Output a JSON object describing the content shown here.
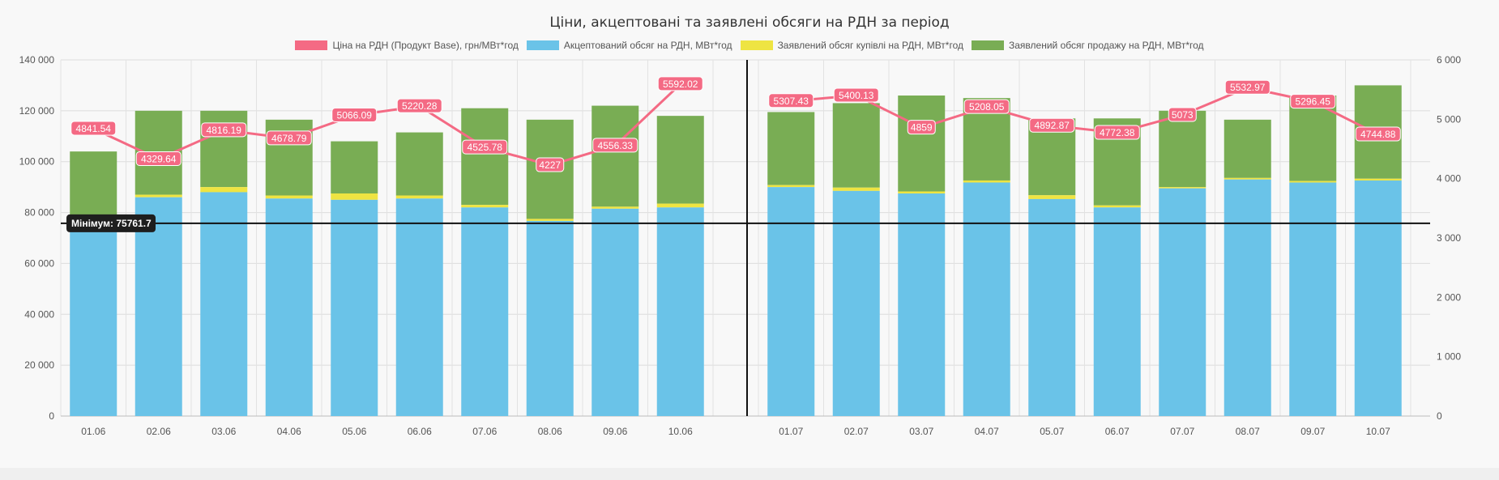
{
  "chart_data": {
    "type": "bar+line",
    "title": "Ціни, акцептовані та заявлені обсяги на РДН за період",
    "legend": [
      {
        "label": "Ціна на РДН (Продукт Base), грн/МВт*год",
        "color": "#f46a84"
      },
      {
        "label": "Акцептований обсяг на РДН, МВт*год",
        "color": "#6ac3e8"
      },
      {
        "label": "Заявлений обсяг купівлі на РДН, МВт*год",
        "color": "#eee442"
      },
      {
        "label": "Заявлений обсяг продажу на РДН, МВт*год",
        "color": "#79ad54"
      }
    ],
    "legend_position": "top",
    "groups": [
      {
        "categories": [
          "01.06",
          "02.06",
          "03.06",
          "04.06",
          "05.06",
          "06.06",
          "07.06",
          "08.06",
          "09.06",
          "10.06"
        ],
        "accepted": [
          75762,
          86000,
          88000,
          85500,
          85000,
          85500,
          82000,
          76700,
          81500,
          82000
        ],
        "buy": [
          0,
          1000,
          2000,
          1200,
          2500,
          1200,
          1000,
          800,
          800,
          1500
        ],
        "sell": [
          104000,
          120000,
          120000,
          116500,
          108000,
          111500,
          121000,
          116500,
          122000,
          118000
        ],
        "price": [
          4841.54,
          4329.64,
          4816.19,
          4678.79,
          5066.09,
          5220.28,
          4525.78,
          4227,
          4556.33,
          5592.02
        ],
        "price_labels": [
          "4841.54",
          "4329.64",
          "4816.19",
          "4678.79",
          "5066.09",
          "5220.28",
          "4525.78",
          "4227",
          "4556.33",
          "5592.02"
        ]
      },
      {
        "categories": [
          "01.07",
          "02.07",
          "03.07",
          "04.07",
          "05.07",
          "06.07",
          "07.07",
          "08.07",
          "09.07",
          "10.07"
        ],
        "accepted": [
          90000,
          88500,
          87500,
          91800,
          85300,
          82000,
          89500,
          93000,
          91800,
          92600
        ],
        "buy": [
          800,
          1300,
          800,
          800,
          1500,
          800,
          500,
          600,
          600,
          700
        ],
        "sell": [
          119500,
          123000,
          126000,
          125000,
          117000,
          117000,
          120000,
          116500,
          126000,
          130000
        ],
        "price": [
          5307.43,
          5400.13,
          4859,
          5208.05,
          4892.87,
          4772.38,
          5073,
          5532.97,
          5296.45,
          4744.88
        ],
        "price_labels": [
          "5307.43",
          "5400.13",
          "4859",
          "5208.05",
          "4892.87",
          "4772.38",
          "5073",
          "5532.97",
          "5296.45",
          "4744.88"
        ]
      }
    ],
    "y_left": {
      "min": 0,
      "max": 140000,
      "ticks": [
        0,
        20000,
        40000,
        60000,
        80000,
        100000,
        120000,
        140000
      ],
      "tick_labels": [
        "0",
        "20 000",
        "40 000",
        "60 000",
        "80 000",
        "100 000",
        "120 000",
        "140 000"
      ]
    },
    "y_right": {
      "min": 0,
      "max": 6000,
      "ticks": [
        0,
        1000,
        2000,
        3000,
        4000,
        5000,
        6000
      ],
      "tick_labels": [
        "0",
        "1 000",
        "2 000",
        "3 000",
        "4 000",
        "5 000",
        "6 000"
      ]
    },
    "min_line": {
      "value": 75761.7,
      "label": "Мінімум: 75761.7"
    },
    "grid": true
  }
}
